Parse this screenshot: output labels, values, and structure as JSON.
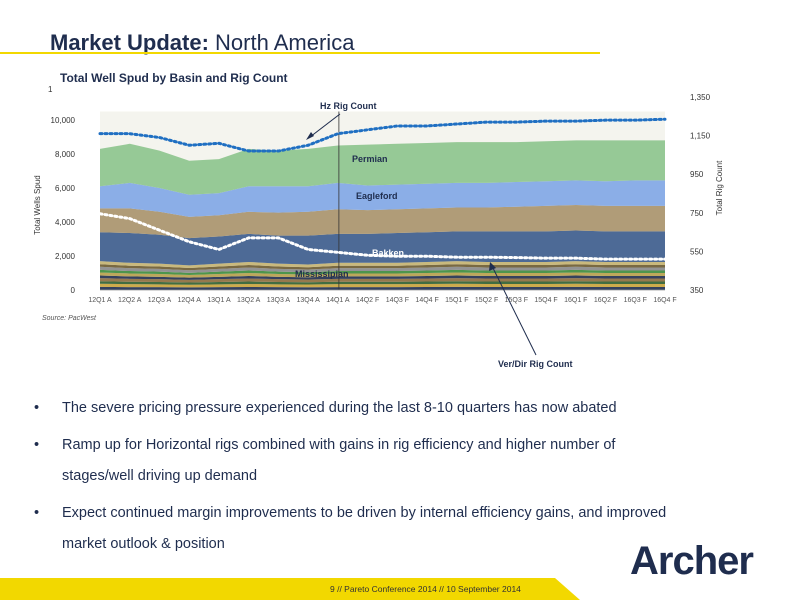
{
  "header": {
    "title_bold": "Market Update:",
    "title_rest": "North America"
  },
  "chart_data": {
    "type": "area",
    "title": "Total Well Spud by Basin and Rig Count",
    "corner_label": "1",
    "ylabel": "Total Wells Spud",
    "y2label": "Total Rig Count",
    "ylim": [
      0,
      10000
    ],
    "y2lim": [
      350,
      1350
    ],
    "yticks": [
      "0",
      "2,000",
      "4,000",
      "6,000",
      "8,000",
      "10,000"
    ],
    "y2ticks": [
      "350",
      "550",
      "750",
      "950",
      "1,150",
      "1,350"
    ],
    "categories": [
      "12Q1 A",
      "12Q2 A",
      "12Q3 A",
      "12Q4 A",
      "13Q1 A",
      "13Q2 A",
      "13Q3 A",
      "13Q4 A",
      "14Q1 A",
      "14Q2 F",
      "14Q3 F",
      "14Q4 F",
      "15Q1 F",
      "15Q2 F",
      "15Q3 F",
      "15Q4 F",
      "16Q1 F",
      "16Q2 F",
      "16Q3 F",
      "16Q4 F"
    ],
    "top_of_stack": [
      8300,
      8600,
      8200,
      7600,
      7700,
      8300,
      8200,
      8300,
      8500,
      8550,
      8600,
      8650,
      8700,
      8700,
      8700,
      8750,
      8800,
      8800,
      8800,
      8800
    ],
    "series_colors": [
      "#1f2d4e",
      "#6b6b2f",
      "#2e7d32",
      "#a9a9a9",
      "#8c6b3c",
      "#5b8fd6",
      "#7ab87a"
    ],
    "series": [
      {
        "name": "Mississipian",
        "values": [
          1700,
          1750,
          1700,
          1600,
          1600,
          1650,
          1650,
          1700,
          1700,
          1700,
          1750,
          1750,
          1750,
          1800,
          1800,
          1800,
          1800,
          1800,
          1800,
          1800
        ]
      },
      {
        "name": "Bakken",
        "values": [
          1400,
          1450,
          1350,
          1250,
          1250,
          1300,
          1350,
          1400,
          1450,
          1400,
          1400,
          1400,
          1400,
          1400,
          1450,
          1500,
          1500,
          1500,
          1500,
          1500
        ]
      },
      {
        "name": "Eagleford",
        "values": [
          1300,
          1500,
          1400,
          1300,
          1300,
          1500,
          1550,
          1500,
          1550,
          1450,
          1450,
          1450,
          1450,
          1450,
          1450,
          1450,
          1450,
          1450,
          1500,
          1500
        ]
      },
      {
        "name": "Permian",
        "values": [
          2200,
          2300,
          2200,
          2000,
          2000,
          2200,
          2100,
          2200,
          2200,
          2400,
          2400,
          2400,
          2400,
          2400,
          2350,
          2350,
          2350,
          2400,
          2350,
          2350
        ]
      }
    ],
    "rig_lines": [
      {
        "name": "Hz Rig Count",
        "values": [
          1160,
          1160,
          1140,
          1100,
          1110,
          1070,
          1070,
          1100,
          1160,
          1180,
          1200,
          1200,
          1210,
          1220,
          1220,
          1225,
          1225,
          1230,
          1230,
          1235
        ]
      },
      {
        "name": "Ver/Dir Rig Count",
        "values": [
          745,
          720,
          660,
          600,
          560,
          620,
          620,
          560,
          545,
          530,
          525,
          525,
          520,
          520,
          518,
          515,
          515,
          510,
          510,
          510
        ]
      }
    ],
    "labels": {
      "permian": "Permian",
      "eagleford": "Eagleford",
      "bakken": "Bakken",
      "mississipian": "Mississipian",
      "hz": "Hz Rig Count",
      "vd": "Ver/Dir Rig Count"
    },
    "source": "Source: PacWest"
  },
  "bullets": [
    "The severe pricing pressure experienced during the last 8-10 quarters has now abated",
    "Ramp up for Horizontal rigs combined with gains in rig efficiency and higher number of stages/well driving up demand",
    "Expect continued margin improvements to be driven by internal efficiency gains, and improved market outlook & position"
  ],
  "bullet_symbol": "•",
  "logo": "Archer",
  "footer": "9  //   Pareto Conference  2014  //  10 September 2014",
  "colors": {
    "accent_yellow": "#f2d800",
    "navy": "#1f2d4e",
    "rig_dots": "#1f6fc2"
  }
}
